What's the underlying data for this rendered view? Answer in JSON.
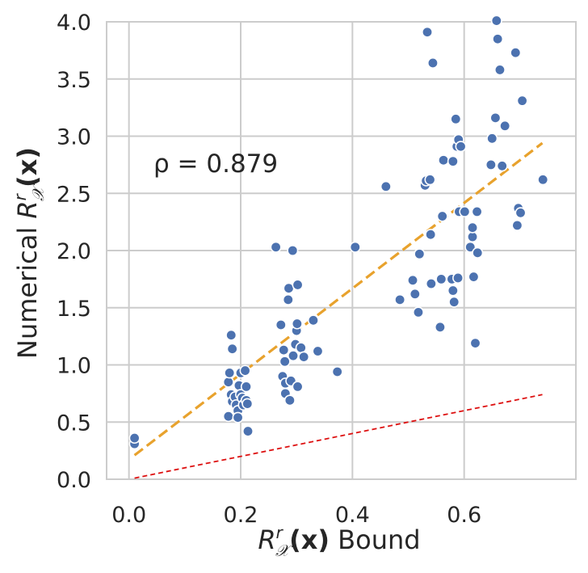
{
  "chart_data": {
    "type": "scatter",
    "xlabel": "R_X^r(x) Bound",
    "ylabel": "Numerical R_X^r(x)",
    "xlabel_parts": {
      "symbol": "R",
      "sup": "r",
      "sub": "𝒳",
      "arg": "(x)",
      "suffix": " Bound"
    },
    "ylabel_parts": {
      "prefix": "Numerical ",
      "symbol": "R",
      "sup": "r",
      "sub": "𝒳",
      "arg": "(x)"
    },
    "xlim": [
      -0.04,
      0.8
    ],
    "ylim": [
      0.0,
      4.0
    ],
    "xticks": [
      0.0,
      0.2,
      0.4,
      0.6
    ],
    "yticks": [
      0.0,
      0.5,
      1.0,
      1.5,
      2.0,
      2.5,
      3.0,
      3.5,
      4.0
    ],
    "xtick_labels": [
      "0.0",
      "0.2",
      "0.4",
      "0.6"
    ],
    "ytick_labels": [
      "0.0",
      "0.5",
      "1.0",
      "1.5",
      "2.0",
      "2.5",
      "3.0",
      "3.5",
      "4.0"
    ],
    "grid": true,
    "annotation": "ρ = 0.879",
    "colors": {
      "points": "#4c72b0",
      "fit_line": "#e8a22d",
      "ref_line": "#dd1111"
    },
    "fit_line": {
      "name": "linear fit",
      "x": [
        0.01,
        0.74
      ],
      "y": [
        0.21,
        2.94
      ]
    },
    "reference_line": {
      "name": "y = x",
      "x": [
        0.01,
        0.74
      ],
      "y": [
        0.01,
        0.74
      ]
    },
    "points": [
      {
        "x": 0.01,
        "y": 0.31
      },
      {
        "x": 0.01,
        "y": 0.36
      },
      {
        "x": 0.178,
        "y": 0.55
      },
      {
        "x": 0.178,
        "y": 0.85
      },
      {
        "x": 0.18,
        "y": 0.93
      },
      {
        "x": 0.183,
        "y": 1.26
      },
      {
        "x": 0.185,
        "y": 1.14
      },
      {
        "x": 0.183,
        "y": 0.74
      },
      {
        "x": 0.185,
        "y": 0.68
      },
      {
        "x": 0.19,
        "y": 0.72
      },
      {
        "x": 0.192,
        "y": 0.65
      },
      {
        "x": 0.195,
        "y": 0.6
      },
      {
        "x": 0.195,
        "y": 0.54
      },
      {
        "x": 0.197,
        "y": 0.82
      },
      {
        "x": 0.2,
        "y": 0.93
      },
      {
        "x": 0.2,
        "y": 0.74
      },
      {
        "x": 0.203,
        "y": 0.71
      },
      {
        "x": 0.205,
        "y": 0.65
      },
      {
        "x": 0.208,
        "y": 0.95
      },
      {
        "x": 0.21,
        "y": 0.81
      },
      {
        "x": 0.21,
        "y": 0.69
      },
      {
        "x": 0.212,
        "y": 0.66
      },
      {
        "x": 0.213,
        "y": 0.42
      },
      {
        "x": 0.263,
        "y": 2.03
      },
      {
        "x": 0.272,
        "y": 1.35
      },
      {
        "x": 0.275,
        "y": 0.9
      },
      {
        "x": 0.277,
        "y": 1.13
      },
      {
        "x": 0.279,
        "y": 1.03
      },
      {
        "x": 0.28,
        "y": 0.84
      },
      {
        "x": 0.28,
        "y": 0.75
      },
      {
        "x": 0.285,
        "y": 1.57
      },
      {
        "x": 0.286,
        "y": 1.67
      },
      {
        "x": 0.288,
        "y": 0.69
      },
      {
        "x": 0.29,
        "y": 0.86
      },
      {
        "x": 0.293,
        "y": 2.0
      },
      {
        "x": 0.294,
        "y": 1.08
      },
      {
        "x": 0.298,
        "y": 1.18
      },
      {
        "x": 0.3,
        "y": 1.3
      },
      {
        "x": 0.301,
        "y": 1.36
      },
      {
        "x": 0.302,
        "y": 1.7
      },
      {
        "x": 0.302,
        "y": 0.81
      },
      {
        "x": 0.308,
        "y": 1.15
      },
      {
        "x": 0.313,
        "y": 1.07
      },
      {
        "x": 0.33,
        "y": 1.39
      },
      {
        "x": 0.338,
        "y": 1.12
      },
      {
        "x": 0.373,
        "y": 0.94
      },
      {
        "x": 0.405,
        "y": 2.03
      },
      {
        "x": 0.46,
        "y": 2.56
      },
      {
        "x": 0.485,
        "y": 1.57
      },
      {
        "x": 0.508,
        "y": 1.74
      },
      {
        "x": 0.512,
        "y": 1.62
      },
      {
        "x": 0.518,
        "y": 1.46
      },
      {
        "x": 0.52,
        "y": 1.97
      },
      {
        "x": 0.53,
        "y": 2.57
      },
      {
        "x": 0.532,
        "y": 2.61
      },
      {
        "x": 0.534,
        "y": 3.91
      },
      {
        "x": 0.539,
        "y": 2.62
      },
      {
        "x": 0.54,
        "y": 2.14
      },
      {
        "x": 0.541,
        "y": 1.71
      },
      {
        "x": 0.544,
        "y": 3.64
      },
      {
        "x": 0.557,
        "y": 1.33
      },
      {
        "x": 0.559,
        "y": 1.75
      },
      {
        "x": 0.561,
        "y": 2.3
      },
      {
        "x": 0.563,
        "y": 2.79
      },
      {
        "x": 0.578,
        "y": 1.75
      },
      {
        "x": 0.58,
        "y": 2.78
      },
      {
        "x": 0.58,
        "y": 1.65
      },
      {
        "x": 0.582,
        "y": 1.55
      },
      {
        "x": 0.585,
        "y": 3.15
      },
      {
        "x": 0.587,
        "y": 2.91
      },
      {
        "x": 0.589,
        "y": 1.76
      },
      {
        "x": 0.59,
        "y": 2.97
      },
      {
        "x": 0.591,
        "y": 2.34
      },
      {
        "x": 0.594,
        "y": 2.91
      },
      {
        "x": 0.601,
        "y": 2.34
      },
      {
        "x": 0.611,
        "y": 2.03
      },
      {
        "x": 0.615,
        "y": 2.12
      },
      {
        "x": 0.615,
        "y": 2.2
      },
      {
        "x": 0.617,
        "y": 1.77
      },
      {
        "x": 0.62,
        "y": 1.19
      },
      {
        "x": 0.624,
        "y": 1.98
      },
      {
        "x": 0.623,
        "y": 2.34
      },
      {
        "x": 0.648,
        "y": 2.75
      },
      {
        "x": 0.65,
        "y": 2.98
      },
      {
        "x": 0.656,
        "y": 3.16
      },
      {
        "x": 0.658,
        "y": 4.01
      },
      {
        "x": 0.66,
        "y": 3.85
      },
      {
        "x": 0.664,
        "y": 3.58
      },
      {
        "x": 0.668,
        "y": 2.74
      },
      {
        "x": 0.673,
        "y": 3.09
      },
      {
        "x": 0.692,
        "y": 3.73
      },
      {
        "x": 0.695,
        "y": 2.22
      },
      {
        "x": 0.697,
        "y": 2.37
      },
      {
        "x": 0.701,
        "y": 2.33
      },
      {
        "x": 0.704,
        "y": 3.31
      },
      {
        "x": 0.741,
        "y": 2.62
      }
    ]
  }
}
